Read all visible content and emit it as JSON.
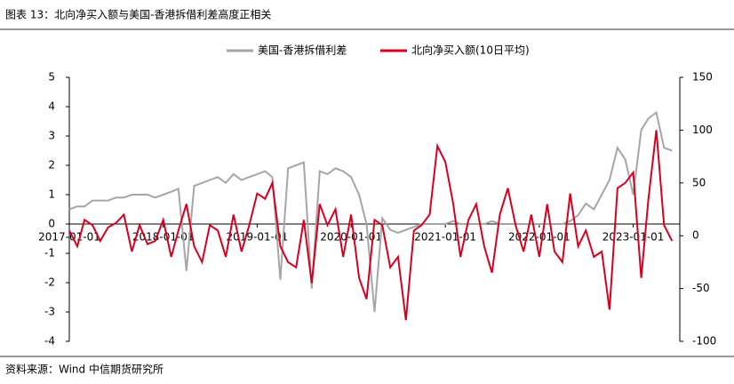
{
  "chart_data": {
    "type": "line",
    "title": "图表 13：北向净买入额与美国-香港拆借利差高度正相关",
    "source": "资料来源：Wind  中信期货研究所",
    "x": [
      "2017-01-01",
      "2017-02-01",
      "2017-03-01",
      "2017-04-01",
      "2017-05-01",
      "2017-06-01",
      "2017-07-01",
      "2017-08-01",
      "2017-09-01",
      "2017-10-01",
      "2017-11-01",
      "2017-12-01",
      "2018-01-01",
      "2018-02-01",
      "2018-03-01",
      "2018-04-01",
      "2018-05-01",
      "2018-06-01",
      "2018-07-01",
      "2018-08-01",
      "2018-09-01",
      "2018-10-01",
      "2018-11-01",
      "2018-12-01",
      "2019-01-01",
      "2019-02-01",
      "2019-03-01",
      "2019-04-01",
      "2019-05-01",
      "2019-06-01",
      "2019-07-01",
      "2019-08-01",
      "2019-09-01",
      "2019-10-01",
      "2019-11-01",
      "2019-12-01",
      "2020-01-01",
      "2020-02-01",
      "2020-03-01",
      "2020-04-01",
      "2020-05-01",
      "2020-06-01",
      "2020-07-01",
      "2020-08-01",
      "2020-09-01",
      "2020-10-01",
      "2020-11-01",
      "2020-12-01",
      "2021-01-01",
      "2021-02-01",
      "2021-03-01",
      "2021-04-01",
      "2021-05-01",
      "2021-06-01",
      "2021-07-01",
      "2021-08-01",
      "2021-09-01",
      "2021-10-01",
      "2021-11-01",
      "2021-12-01",
      "2022-01-01",
      "2022-02-01",
      "2022-03-01",
      "2022-04-01",
      "2022-05-01",
      "2022-06-01",
      "2022-07-01",
      "2022-08-01",
      "2022-09-01",
      "2022-10-01",
      "2022-11-01",
      "2022-12-01",
      "2023-01-01",
      "2023-02-01",
      "2023-03-01",
      "2023-04-01",
      "2023-05-01",
      "2023-06-01"
    ],
    "xlim": [
      "2017-01-01",
      "2023-07-01"
    ],
    "xticks": [
      "2017-01-01",
      "2018-01-01",
      "2019-01-01",
      "2020-01-01",
      "2021-01-01",
      "2022-01-01",
      "2023-01-01"
    ],
    "series": [
      {
        "name": "美国-香港拆借利差",
        "color": "#a6a6a6",
        "values": [
          0.5,
          0.6,
          0.6,
          0.8,
          0.8,
          0.8,
          0.9,
          0.9,
          1.0,
          1.0,
          1.0,
          0.9,
          1.0,
          1.1,
          1.2,
          -1.6,
          1.3,
          1.4,
          1.5,
          1.6,
          1.4,
          1.7,
          1.5,
          1.6,
          1.7,
          1.8,
          1.6,
          -1.9,
          1.9,
          2.0,
          2.1,
          -2.2,
          1.8,
          1.7,
          1.9,
          1.8,
          1.6,
          1.0,
          0.0,
          -3.0,
          0.2,
          -0.2,
          -0.3,
          -0.2,
          -0.1,
          0.0,
          0.0,
          0.0,
          0.0,
          0.1,
          0.0,
          0.0,
          0.0,
          0.0,
          0.1,
          0.0,
          0.0,
          0.0,
          0.0,
          0.0,
          0.0,
          0.0,
          0.0,
          0.0,
          0.1,
          0.3,
          0.7,
          0.5,
          1.0,
          1.5,
          2.6,
          2.2,
          1.0,
          3.2,
          3.6,
          3.8,
          2.6,
          2.5
        ]
      },
      {
        "name": "北向净买入额(10日平均)",
        "color": "#d7001f",
        "axis": "y2",
        "values": [
          5,
          -10,
          15,
          10,
          -5,
          8,
          12,
          20,
          -15,
          10,
          -8,
          -5,
          15,
          -20,
          5,
          30,
          -10,
          -25,
          10,
          5,
          -20,
          20,
          -15,
          10,
          40,
          35,
          50,
          -10,
          -25,
          -30,
          15,
          -45,
          30,
          10,
          25,
          -20,
          20,
          -40,
          -60,
          15,
          10,
          -30,
          -20,
          -80,
          5,
          10,
          20,
          85,
          70,
          30,
          -20,
          15,
          30,
          -10,
          -35,
          20,
          45,
          10,
          -15,
          20,
          -20,
          30,
          -15,
          -25,
          40,
          -10,
          5,
          -20,
          -15,
          -70,
          45,
          50,
          60,
          -40,
          35,
          100,
          10,
          -5
        ]
      }
    ],
    "ylim": [
      -4,
      5
    ],
    "yticks": [
      5,
      4,
      3,
      2,
      1,
      0,
      -1,
      -2,
      -3,
      -4
    ],
    "y2lim": [
      -100,
      150
    ],
    "y2ticks": [
      150,
      100,
      50,
      0,
      -50,
      -100
    ],
    "legend": "top"
  }
}
